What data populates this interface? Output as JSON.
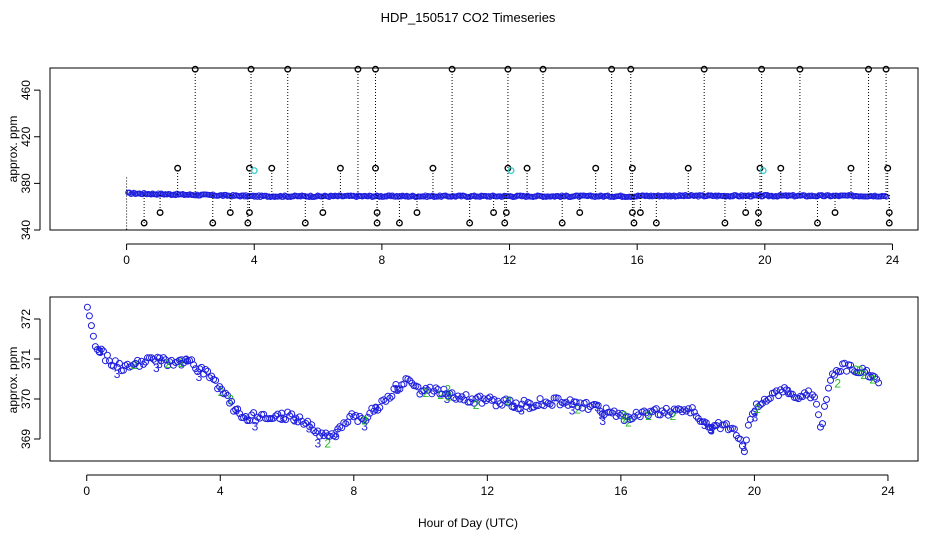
{
  "chart_data": [
    {
      "type": "scatter",
      "title": "HDP_150517  CO2 Timeseries",
      "xlabel": "",
      "ylabel": "approx. ppm",
      "xlim": [
        -2.4,
        24.8
      ],
      "ylim": [
        340,
        479
      ],
      "xticks": [
        0,
        4,
        8,
        12,
        16,
        20,
        24
      ],
      "yticks": [
        340,
        380,
        420,
        460
      ],
      "colors": {
        "series": "#1f1fdd",
        "flag": "#33cccc",
        "outlier": "#000000"
      },
      "spikes_to_max": [
        2.15,
        3.9,
        5.05,
        7.25,
        7.8,
        10.2,
        11.95,
        13.05,
        15.2,
        15.8,
        18.1,
        19.9,
        21.1,
        23.25,
        23.8
      ],
      "spikes_to_393": [
        1.6,
        3.85,
        4.55,
        6.7,
        7.8,
        9.6,
        11.95,
        12.55,
        14.7,
        15.85,
        17.6,
        19.85,
        20.5,
        22.7,
        23.85
      ],
      "spikes_to_355": [
        1.05,
        3.25,
        3.85,
        6.15,
        7.85,
        9.1,
        11.5,
        11.9,
        14.2,
        15.85,
        16.1,
        19.4,
        19.8,
        22.2,
        23.9
      ],
      "spikes_to_346": [
        0.55,
        2.7,
        3.8,
        5.6,
        7.85,
        8.55,
        10.75,
        11.85,
        13.65,
        15.9,
        16.6,
        18.75,
        19.8,
        21.65,
        23.9
      ],
      "flags_cyan": [
        4.0,
        12.05,
        19.95
      ]
    },
    {
      "type": "scatter",
      "title": "",
      "xlabel": "Hour of Day (UTC)",
      "ylabel": "approx. ppm",
      "xlim": [
        -1.1,
        24.9
      ],
      "ylim": [
        368.45,
        372.55
      ],
      "xticks": [
        0,
        4,
        8,
        12,
        16,
        20,
        24
      ],
      "yticks": [
        369,
        370,
        371,
        372
      ],
      "marker_labels": [
        "2",
        "3"
      ],
      "colors": {
        "circle": "#1f1fdd",
        "green": "#22bb22",
        "blue": "#1f1fdd"
      },
      "trend": [
        [
          0.0,
          372.3
        ],
        [
          0.15,
          371.7
        ],
        [
          0.3,
          371.3
        ],
        [
          0.5,
          371.1
        ],
        [
          0.8,
          370.9
        ],
        [
          1.0,
          370.8
        ],
        [
          1.5,
          370.85
        ],
        [
          2.0,
          371.0
        ],
        [
          2.5,
          370.9
        ],
        [
          3.0,
          370.95
        ],
        [
          3.5,
          370.7
        ],
        [
          3.8,
          370.5
        ],
        [
          4.0,
          370.2
        ],
        [
          4.3,
          369.9
        ],
        [
          4.6,
          369.6
        ],
        [
          5.0,
          369.55
        ],
        [
          5.5,
          369.5
        ],
        [
          6.0,
          369.6
        ],
        [
          6.5,
          369.45
        ],
        [
          7.0,
          369.1
        ],
        [
          7.3,
          369.0
        ],
        [
          7.6,
          369.3
        ],
        [
          7.9,
          369.6
        ],
        [
          8.3,
          369.5
        ],
        [
          8.7,
          369.8
        ],
        [
          9.0,
          370.0
        ],
        [
          9.3,
          370.3
        ],
        [
          9.6,
          370.45
        ],
        [
          10.0,
          370.2
        ],
        [
          10.5,
          370.25
        ],
        [
          11.0,
          370.1
        ],
        [
          11.5,
          370.0
        ],
        [
          12.0,
          369.95
        ],
        [
          13.0,
          369.85
        ],
        [
          14.0,
          369.95
        ],
        [
          15.0,
          369.85
        ],
        [
          15.5,
          369.7
        ],
        [
          16.0,
          369.55
        ],
        [
          17.0,
          369.65
        ],
        [
          17.5,
          369.7
        ],
        [
          18.0,
          369.8
        ],
        [
          18.5,
          369.4
        ],
        [
          19.0,
          369.3
        ],
        [
          19.4,
          369.25
        ],
        [
          19.7,
          368.75
        ],
        [
          19.9,
          369.6
        ],
        [
          20.2,
          369.95
        ],
        [
          20.6,
          370.1
        ],
        [
          21.0,
          370.2
        ],
        [
          21.3,
          370.0
        ],
        [
          21.8,
          370.15
        ],
        [
          22.0,
          369.3
        ],
        [
          22.3,
          370.6
        ],
        [
          22.6,
          370.8
        ],
        [
          23.0,
          370.75
        ],
        [
          23.4,
          370.65
        ],
        [
          23.7,
          370.5
        ]
      ]
    }
  ]
}
